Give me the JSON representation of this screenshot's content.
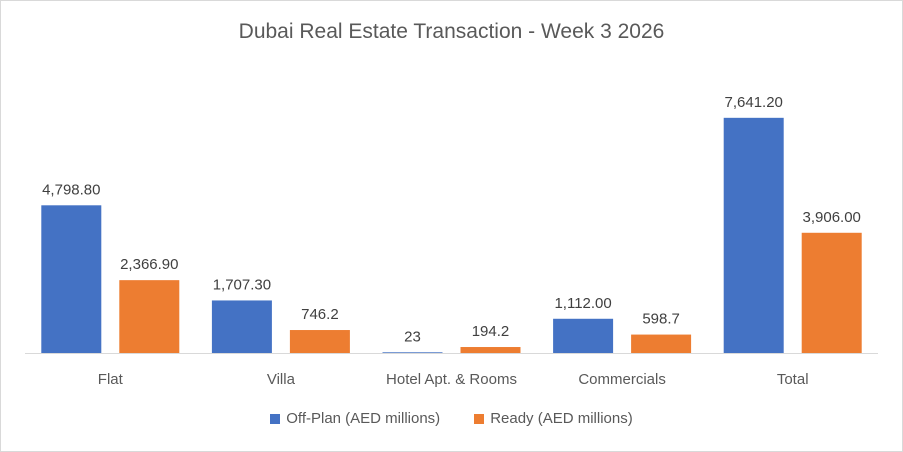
{
  "chart_data": {
    "type": "bar",
    "title": "Dubai Real Estate Transaction - Week 3 2026",
    "categories": [
      "Flat",
      "Villa",
      "Hotel Apt. & Rooms",
      "Commercials",
      "Total"
    ],
    "series": [
      {
        "name": "Off-Plan (AED millions)",
        "color": "#4472C4",
        "values": [
          4798.8,
          1707.3,
          23,
          1112.0,
          7641.2
        ],
        "labels": [
          "4,798.80",
          "1,707.30",
          "23",
          "1,112.00",
          "7,641.20"
        ]
      },
      {
        "name": "Ready (AED millions)",
        "color": "#ED7D31",
        "values": [
          2366.9,
          746.2,
          194.2,
          598.7,
          3906.0
        ],
        "labels": [
          "2,366.90",
          "746.2",
          "194.2",
          "598.7",
          "3,906.00"
        ]
      }
    ],
    "ylim": [
      0,
      9000
    ],
    "grid": false,
    "legend": "bottom"
  }
}
